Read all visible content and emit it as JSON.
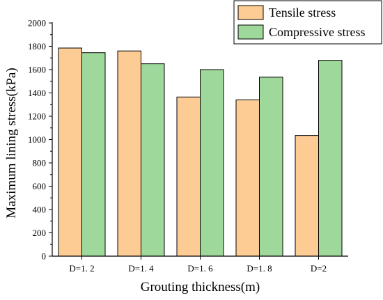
{
  "chart_data": {
    "type": "bar",
    "xlabel": "Grouting thickness(m)",
    "ylabel": "Maximum lining stress(kPa)",
    "categories": [
      "D=1. 2",
      "D=1. 4",
      "D=1. 6",
      "D=1. 8",
      "D=2"
    ],
    "ylim": [
      0,
      2000
    ],
    "yticks": [
      0,
      200,
      400,
      600,
      800,
      1000,
      1200,
      1400,
      1600,
      1800,
      2000
    ],
    "legend_position": "top-right",
    "series": [
      {
        "name": "Tensile stress",
        "color": "#FDCC94",
        "values": [
          1785,
          1760,
          1365,
          1340,
          1035
        ]
      },
      {
        "name": "Compressive stress",
        "color": "#9FD89B",
        "values": [
          1745,
          1650,
          1600,
          1535,
          1680
        ]
      }
    ]
  }
}
